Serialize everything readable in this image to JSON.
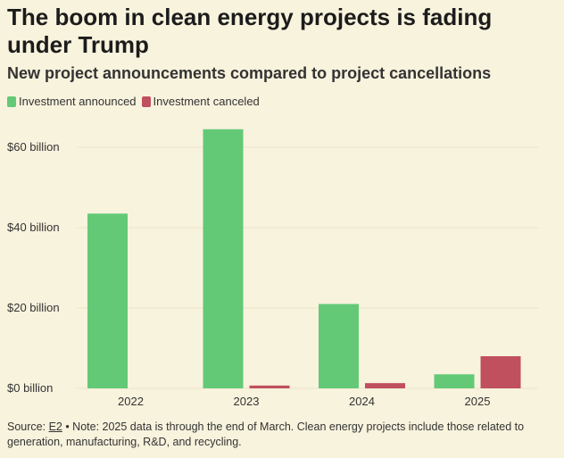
{
  "title": "The boom in clean energy projects is fading under Trump",
  "subtitle": "New project announcements compared to project cancellations",
  "legend": [
    {
      "label": "Investment announced",
      "color": "#63c977"
    },
    {
      "label": "Investment canceled",
      "color": "#c0505e"
    }
  ],
  "source": {
    "prefix": "Source: ",
    "link": "E2",
    "note": " • Note: 2025 data is through the end of March. Clean energy projects include those related to generation, manufacturing, R&D, and recycling."
  },
  "chart_data": {
    "type": "bar",
    "categories": [
      "2022",
      "2023",
      "2024",
      "2025"
    ],
    "series": [
      {
        "name": "Investment announced",
        "color": "#63c977",
        "values": [
          43.5,
          64.5,
          21,
          3.5
        ]
      },
      {
        "name": "Investment canceled",
        "color": "#c0505e",
        "values": [
          0,
          0.7,
          1.3,
          8
        ]
      }
    ],
    "ylim": [
      0,
      65
    ],
    "yticks": [
      0,
      20,
      40,
      60
    ],
    "ytick_labels": [
      "$0 billion",
      "$20 billion",
      "$40 billion",
      "$60 billion"
    ],
    "xlabel": "",
    "ylabel": "",
    "grid": true
  }
}
